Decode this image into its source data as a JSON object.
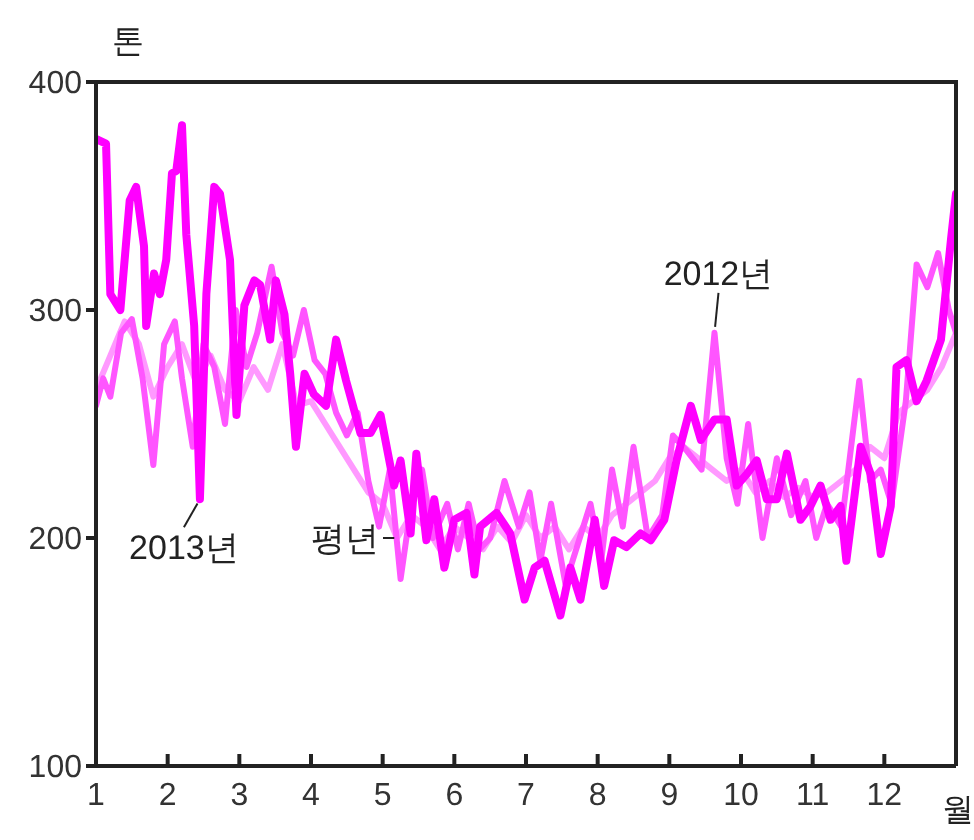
{
  "chart_data": {
    "type": "line",
    "xlabel": "월",
    "ylabel": "톤",
    "xlim": [
      1,
      13
    ],
    "xticks": [
      1,
      2,
      3,
      4,
      5,
      6,
      7,
      8,
      9,
      10,
      11,
      12
    ],
    "ylim": [
      100,
      400
    ],
    "yticks": [
      100,
      200,
      300,
      400
    ],
    "grid": false,
    "legend": false,
    "marker": "none",
    "line_style": "solid",
    "series": [
      {
        "name": "평년",
        "color": "#ff99ff",
        "x": [
          1.0,
          1.2,
          1.4,
          1.6,
          1.8,
          2.0,
          2.2,
          2.4,
          2.6,
          2.8,
          3.0,
          3.2,
          3.4,
          3.6,
          3.8,
          4.0,
          4.2,
          4.4,
          4.6,
          4.8,
          5.0,
          5.2,
          5.4,
          5.6,
          5.8,
          6.0,
          6.2,
          6.4,
          6.6,
          6.8,
          7.0,
          7.2,
          7.4,
          7.6,
          7.8,
          8.0,
          8.2,
          8.4,
          8.6,
          8.8,
          9.0,
          9.2,
          9.4,
          9.6,
          9.8,
          10.0,
          10.2,
          10.4,
          10.6,
          10.8,
          11.0,
          11.2,
          11.4,
          11.6,
          11.8,
          12.0,
          12.2,
          12.4,
          12.6,
          12.8,
          13.0
        ],
        "values": [
          265,
          280,
          295,
          285,
          262,
          275,
          285,
          268,
          280,
          265,
          260,
          275,
          265,
          285,
          258,
          260,
          250,
          240,
          230,
          220,
          215,
          200,
          210,
          205,
          195,
          205,
          200,
          195,
          205,
          198,
          210,
          200,
          205,
          195,
          205,
          200,
          210,
          215,
          220,
          225,
          235,
          240,
          235,
          230,
          225,
          230,
          220,
          225,
          218,
          222,
          218,
          220,
          225,
          230,
          240,
          235,
          255,
          260,
          265,
          275,
          290
        ]
      },
      {
        "name": "2012년",
        "color": "#ff55ff",
        "x": [
          1.0,
          1.1,
          1.2,
          1.35,
          1.5,
          1.65,
          1.8,
          1.95,
          2.1,
          2.2,
          2.35,
          2.5,
          2.65,
          2.8,
          2.95,
          3.1,
          3.25,
          3.45,
          3.6,
          3.75,
          3.9,
          4.05,
          4.2,
          4.35,
          4.5,
          4.65,
          4.8,
          4.95,
          5.1,
          5.25,
          5.4,
          5.55,
          5.7,
          5.9,
          6.05,
          6.2,
          6.35,
          6.5,
          6.7,
          6.9,
          7.05,
          7.2,
          7.35,
          7.55,
          7.75,
          7.9,
          8.05,
          8.2,
          8.35,
          8.5,
          8.7,
          8.9,
          9.05,
          9.25,
          9.45,
          9.63,
          9.8,
          9.95,
          10.1,
          10.3,
          10.5,
          10.7,
          10.9,
          11.05,
          11.2,
          11.4,
          11.65,
          11.8,
          11.95,
          12.1,
          12.3,
          12.45,
          12.6,
          12.75,
          12.9,
          13.0
        ],
        "values": [
          258,
          270,
          262,
          290,
          296,
          270,
          232,
          285,
          295,
          270,
          240,
          285,
          275,
          250,
          300,
          275,
          290,
          319,
          290,
          280,
          300,
          278,
          272,
          255,
          245,
          255,
          225,
          205,
          230,
          182,
          215,
          230,
          200,
          215,
          195,
          215,
          195,
          200,
          225,
          205,
          220,
          190,
          215,
          180,
          200,
          215,
          190,
          230,
          205,
          240,
          200,
          210,
          245,
          238,
          230,
          290,
          235,
          215,
          250,
          200,
          235,
          210,
          225,
          200,
          215,
          205,
          269,
          225,
          230,
          215,
          260,
          320,
          310,
          325,
          300,
          290
        ]
      },
      {
        "name": "2013년",
        "color": "#ff00ff",
        "x": [
          1.0,
          1.14,
          1.2,
          1.34,
          1.47,
          1.56,
          1.67,
          1.7,
          1.81,
          1.89,
          1.98,
          2.06,
          2.12,
          2.2,
          2.26,
          2.37,
          2.45,
          2.54,
          2.65,
          2.73,
          2.87,
          2.96,
          3.07,
          3.21,
          3.29,
          3.43,
          3.51,
          3.63,
          3.71,
          3.79,
          3.91,
          4.04,
          4.21,
          4.35,
          4.49,
          4.69,
          4.83,
          4.97,
          5.16,
          5.25,
          5.39,
          5.47,
          5.61,
          5.72,
          5.86,
          6.0,
          6.17,
          6.28,
          6.36,
          6.59,
          6.78,
          6.98,
          7.12,
          7.26,
          7.48,
          7.62,
          7.76,
          7.96,
          8.09,
          8.23,
          8.4,
          8.6,
          8.74,
          8.93,
          9.1,
          9.3,
          9.44,
          9.63,
          9.8,
          9.94,
          10.08,
          10.22,
          10.36,
          10.5,
          10.64,
          10.83,
          10.97,
          11.11,
          11.25,
          11.39,
          11.47,
          11.67,
          11.81,
          11.95,
          12.09,
          12.17,
          12.31,
          12.45,
          12.59,
          12.79,
          12.93,
          13.0
        ],
        "values": [
          375,
          373,
          307,
          300,
          348,
          354,
          328,
          293,
          316,
          307,
          322,
          360,
          361,
          381,
          333,
          293,
          217,
          307,
          354,
          351,
          322,
          254,
          302,
          313,
          311,
          287,
          313,
          298,
          272,
          240,
          272,
          263,
          258,
          287,
          269,
          246,
          246,
          254,
          223,
          234,
          202,
          237,
          199,
          217,
          187,
          208,
          211,
          184,
          205,
          211,
          202,
          173,
          187,
          190,
          166,
          187,
          173,
          208,
          179,
          199,
          196,
          202,
          199,
          208,
          234,
          258,
          243,
          252,
          252,
          223,
          228,
          234,
          217,
          217,
          237,
          208,
          214,
          223,
          208,
          214,
          190,
          240,
          228,
          193,
          214,
          275,
          278,
          260,
          269,
          287,
          331,
          351
        ]
      }
    ]
  }
}
